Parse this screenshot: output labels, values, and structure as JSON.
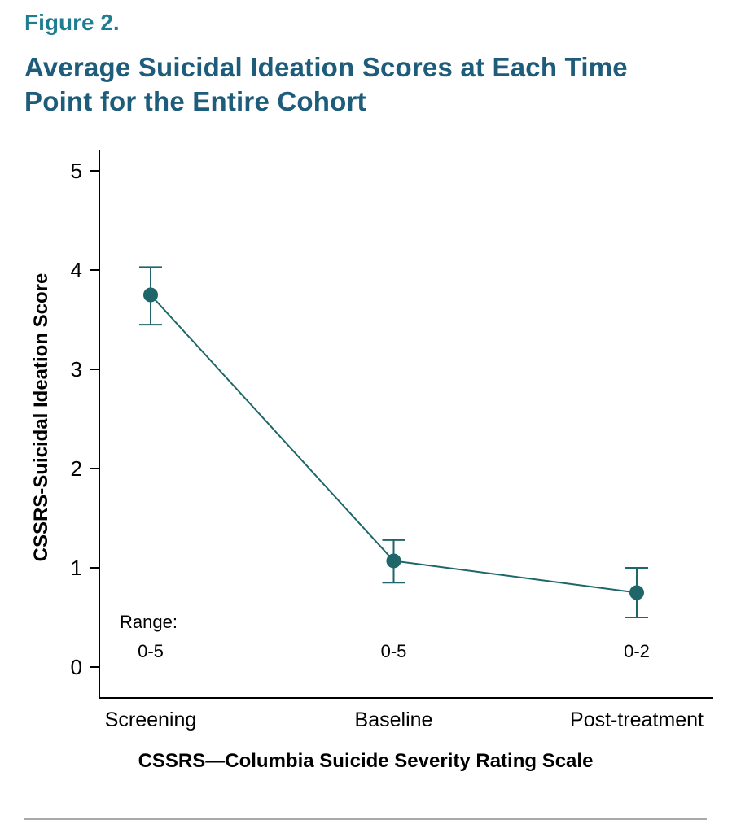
{
  "figure": {
    "label": "Figure 2.",
    "title": "Average Suicidal Ideation Scores at Each Time Point for the Entire Cohort"
  },
  "chart_data": {
    "type": "line",
    "title": "Average Suicidal Ideation Scores at Each Time Point for the Entire Cohort",
    "categories": [
      "Screening",
      "Baseline",
      "Post-treatment"
    ],
    "series": [
      {
        "name": "Mean CSSRS-Suicidal Ideation Score",
        "values": [
          3.75,
          1.07,
          0.75
        ],
        "error_low": [
          3.45,
          0.85,
          0.5
        ],
        "error_high": [
          4.03,
          1.28,
          1.0
        ]
      }
    ],
    "annotations": {
      "range_label": "Range:",
      "range_values": [
        "0-5",
        "0-5",
        "0-2"
      ]
    },
    "ylabel": "CSSRS-Suicidal Ideation Score",
    "xlabel": "CSSRS—Columbia Suicide Severity Rating Scale",
    "yticks": [
      "0",
      "1",
      "2",
      "3",
      "4",
      "5"
    ],
    "ylim": [
      0,
      5
    ],
    "grid": false,
    "legend": "none",
    "colors": {
      "line": "#1e666a",
      "axis": "#000000",
      "figure_label": "#1e7d90",
      "title": "#1d5c7a"
    }
  }
}
